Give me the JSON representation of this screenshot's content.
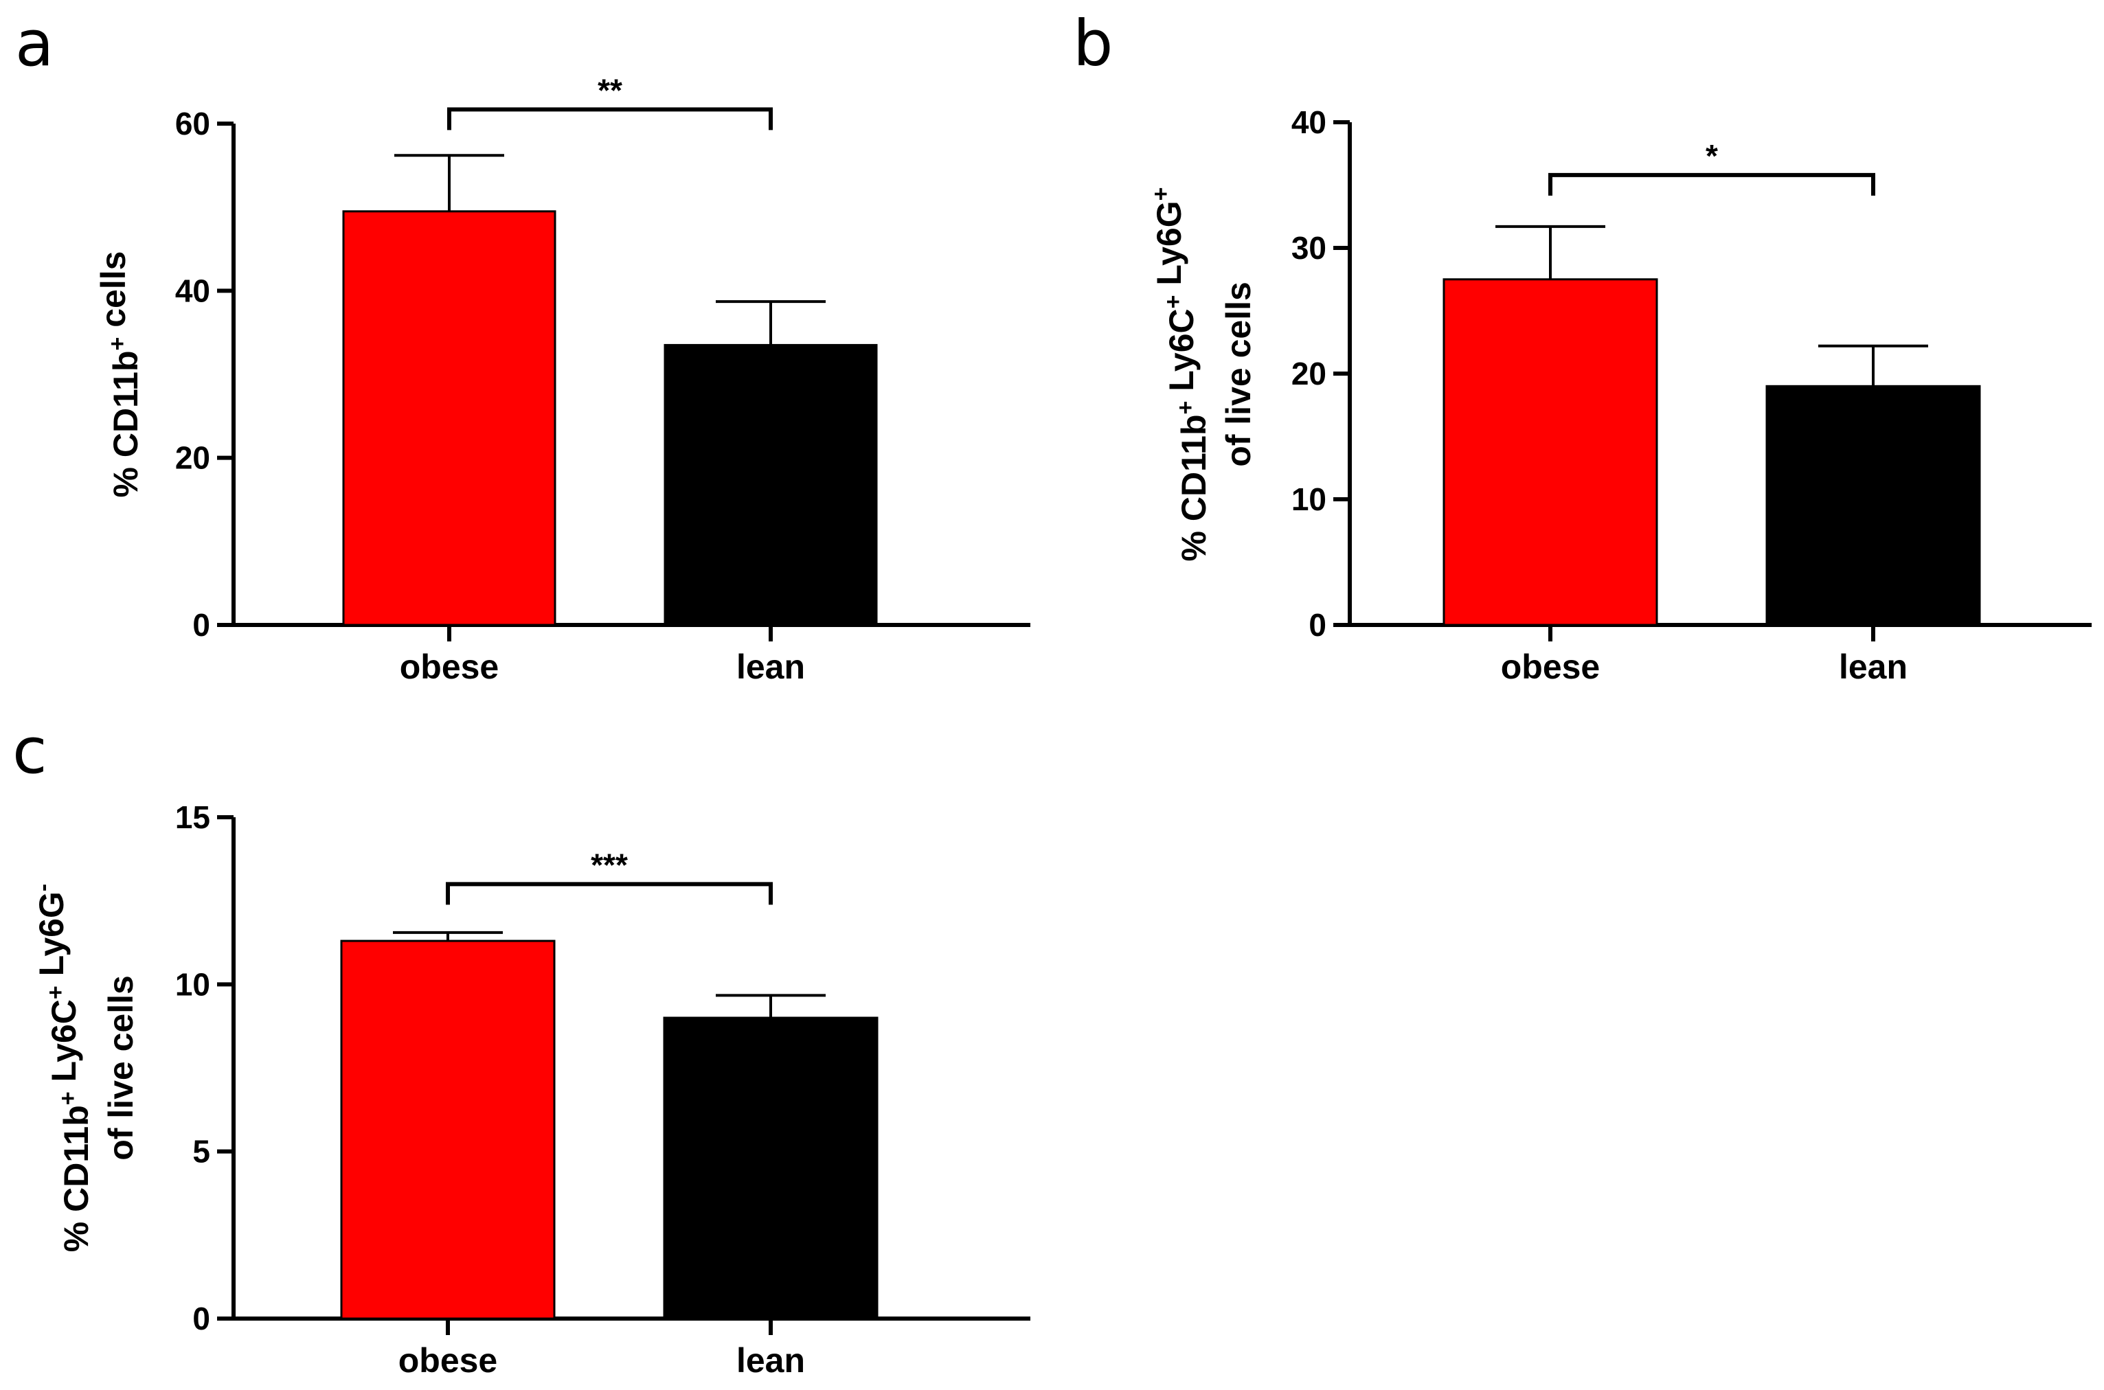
{
  "chart_data": [
    {
      "panel": "a",
      "type": "bar",
      "categories": [
        "obese",
        "lean"
      ],
      "values": [
        49.5,
        33.5
      ],
      "errors": [
        6.7,
        5.2
      ],
      "colors": [
        "#ff0000",
        "#000000"
      ],
      "ylabel_parts": [
        {
          "t": "% CD11b"
        },
        {
          "t": "+",
          "sup": true
        },
        {
          "t": " cells"
        }
      ],
      "ylabel_lines": 1,
      "ylim": [
        0,
        60
      ],
      "yticks": [
        0,
        20,
        40,
        60
      ],
      "significance": "**",
      "bracket_y": 61.7
    },
    {
      "panel": "b",
      "type": "bar",
      "categories": [
        "obese",
        "lean"
      ],
      "values": [
        27.5,
        19.0
      ],
      "errors": [
        4.2,
        3.2
      ],
      "colors": [
        "#ff0000",
        "#000000"
      ],
      "ylabel_parts": [
        {
          "t": "% CD11b"
        },
        {
          "t": "+",
          "sup": true
        },
        {
          "t": " Ly6C"
        },
        {
          "t": "+",
          "sup": true
        },
        {
          "t": " Ly6G"
        },
        {
          "t": "+",
          "sup": true
        }
      ],
      "ylabel_line2": "of live cells",
      "ylabel_lines": 2,
      "ylim": [
        0,
        40
      ],
      "yticks": [
        0,
        10,
        20,
        30,
        40
      ],
      "significance": "*",
      "bracket_y": 35.8
    },
    {
      "panel": "c",
      "type": "bar",
      "categories": [
        "obese",
        "lean"
      ],
      "values": [
        11.3,
        9.0
      ],
      "errors": [
        0.25,
        0.67
      ],
      "colors": [
        "#ff0000",
        "#000000"
      ],
      "ylabel_parts": [
        {
          "t": "% CD11b"
        },
        {
          "t": "+",
          "sup": true
        },
        {
          "t": " Ly6C"
        },
        {
          "t": "+",
          "sup": true
        },
        {
          "t": " Ly6G"
        },
        {
          "t": "-",
          "sup": true
        }
      ],
      "ylabel_line2": "of live cells",
      "ylabel_lines": 2,
      "ylim": [
        0,
        15
      ],
      "yticks": [
        0,
        5,
        10,
        15
      ],
      "significance": "***",
      "bracket_y": 13.0
    }
  ]
}
